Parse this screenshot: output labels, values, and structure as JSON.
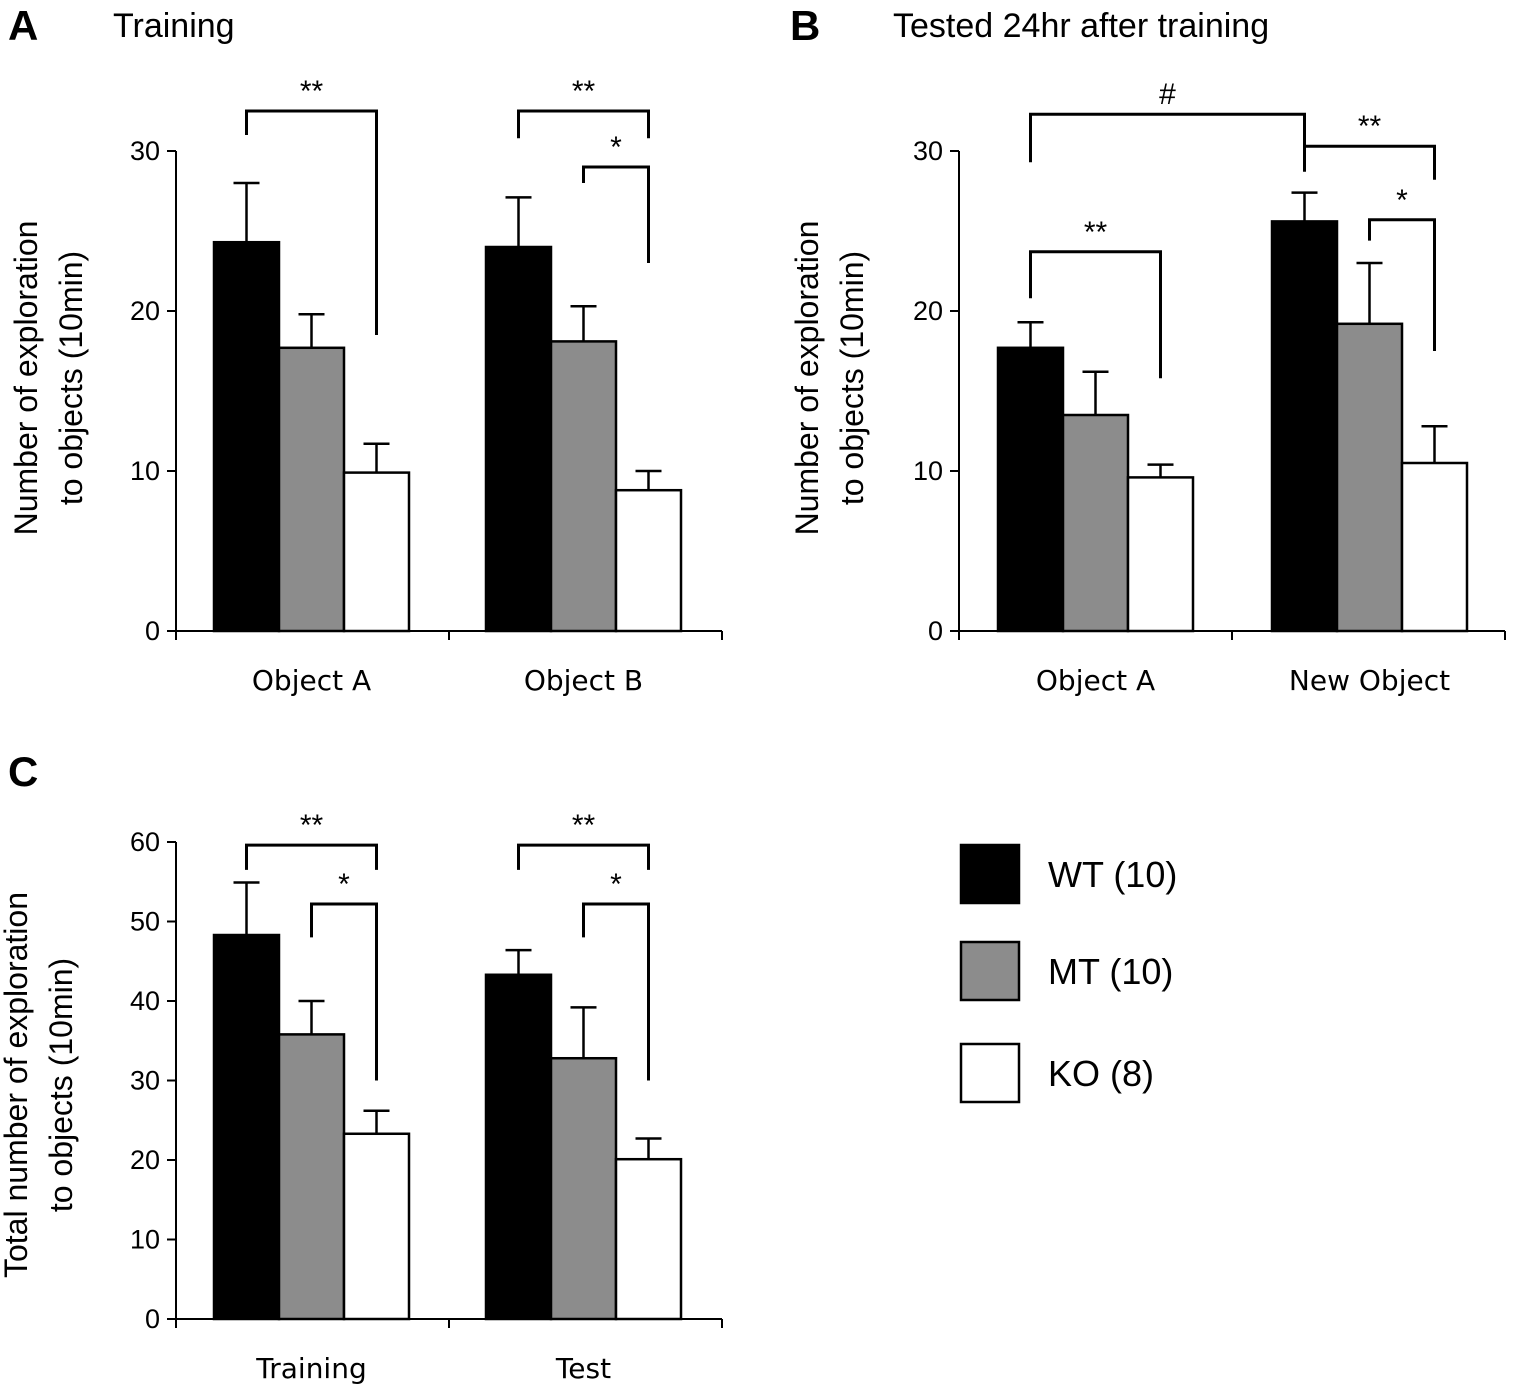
{
  "legend": [
    {
      "name": "WT (10)",
      "color": "#000000"
    },
    {
      "name": "MT (10)",
      "color": "#8c8c8c"
    },
    {
      "name": "KO (8)",
      "color": "#ffffff"
    }
  ],
  "chart_data": [
    {
      "id": "A",
      "panel_label": "A",
      "type": "bar",
      "title": "Training",
      "ylabel": "Number of exploration to objects (10min)",
      "ylabel_lines": [
        "Number of exploration",
        "to objects (10min)"
      ],
      "categories": [
        "Object A",
        "Object B"
      ],
      "ylim": [
        0,
        30
      ],
      "yticks": [
        0,
        10,
        20,
        30
      ],
      "series": [
        {
          "name": "WT (10)",
          "values": [
            24.3,
            24.0
          ],
          "errors": [
            3.7,
            3.1
          ]
        },
        {
          "name": "MT (10)",
          "values": [
            17.7,
            18.1
          ],
          "errors": [
            2.1,
            2.2
          ]
        },
        {
          "name": "KO (8)",
          "values": [
            9.9,
            8.8
          ],
          "errors": [
            1.8,
            1.2
          ]
        }
      ],
      "significance": [
        {
          "label": "**",
          "from": [
            0,
            0
          ],
          "to": [
            0,
            2
          ],
          "level": 32.5,
          "left_end": 31.0,
          "right_end": 18.5
        },
        {
          "label": "**",
          "from": [
            1,
            0
          ],
          "to": [
            1,
            2
          ],
          "level": 32.5,
          "left_end": 30.8,
          "right_end": 30.8
        },
        {
          "label": "*",
          "from": [
            1,
            1
          ],
          "to": [
            1,
            2
          ],
          "level": 29.0,
          "left_end": 28.0,
          "right_end": 23.0
        }
      ]
    },
    {
      "id": "B",
      "panel_label": "B",
      "type": "bar",
      "title": "Tested 24hr after training",
      "ylabel": "Number of exploration to objects (10min)",
      "ylabel_lines": [
        "Number of exploration",
        "to objects (10min)"
      ],
      "categories": [
        "Object A",
        "New Object"
      ],
      "ylim": [
        0,
        30
      ],
      "yticks": [
        0,
        10,
        20,
        30
      ],
      "series": [
        {
          "name": "WT (10)",
          "values": [
            17.7,
            25.6
          ],
          "errors": [
            1.6,
            1.8
          ]
        },
        {
          "name": "MT (10)",
          "values": [
            13.5,
            19.2
          ],
          "errors": [
            2.7,
            3.8
          ]
        },
        {
          "name": "KO (8)",
          "values": [
            9.6,
            10.5
          ],
          "errors": [
            0.8,
            2.3
          ]
        }
      ],
      "significance": [
        {
          "label": "#",
          "from": [
            0,
            0
          ],
          "to": [
            1,
            0
          ],
          "level": 32.3,
          "left_end": 29.3,
          "right_end": 30.3
        },
        {
          "label": "**",
          "from": [
            1,
            0
          ],
          "to": [
            1,
            2
          ],
          "level": 30.3,
          "left_end": 28.7,
          "right_end": 28.2
        },
        {
          "label": "*",
          "from": [
            1,
            1
          ],
          "to": [
            1,
            2
          ],
          "level": 25.7,
          "left_end": 24.4,
          "right_end": 17.5
        },
        {
          "label": "**",
          "from": [
            0,
            0
          ],
          "to": [
            0,
            2
          ],
          "level": 23.7,
          "left_end": 20.8,
          "right_end": 15.8
        }
      ]
    },
    {
      "id": "C",
      "panel_label": "C",
      "type": "bar",
      "title": "",
      "ylabel": "Total number of exploration to objects (10min)",
      "ylabel_lines": [
        "Total number of exploration",
        "to objects (10min)"
      ],
      "categories": [
        "Training",
        "Test"
      ],
      "ylim": [
        0,
        60
      ],
      "yticks": [
        0,
        10,
        20,
        30,
        40,
        50,
        60
      ],
      "series": [
        {
          "name": "WT (10)",
          "values": [
            48.3,
            43.3
          ],
          "errors": [
            6.6,
            3.1
          ]
        },
        {
          "name": "MT (10)",
          "values": [
            35.8,
            32.8
          ],
          "errors": [
            4.2,
            6.4
          ]
        },
        {
          "name": "KO (8)",
          "values": [
            23.3,
            20.1
          ],
          "errors": [
            2.9,
            2.6
          ]
        }
      ],
      "significance": [
        {
          "label": "**",
          "from": [
            0,
            0
          ],
          "to": [
            0,
            2
          ],
          "level": 59.6,
          "left_end": 56.5,
          "right_end": 56.5
        },
        {
          "label": "*",
          "from": [
            0,
            1
          ],
          "to": [
            0,
            2
          ],
          "level": 52.2,
          "left_end": 48.0,
          "right_end": 30.0
        },
        {
          "label": "**",
          "from": [
            1,
            0
          ],
          "to": [
            1,
            2
          ],
          "level": 59.6,
          "left_end": 56.5,
          "right_end": 56.5
        },
        {
          "label": "*",
          "from": [
            1,
            1
          ],
          "to": [
            1,
            2
          ],
          "level": 52.2,
          "left_end": 48.0,
          "right_end": 30.0
        }
      ]
    }
  ]
}
